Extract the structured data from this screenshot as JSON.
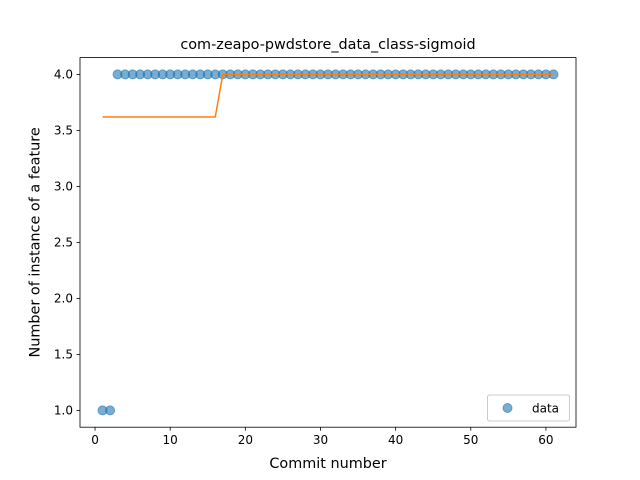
{
  "chart_data": {
    "type": "scatter",
    "title": "com-zeapo-pwdstore_data_class-sigmoid",
    "xlabel": "Commit number",
    "ylabel": "Number of instance of a feature",
    "xlim": [
      -2,
      64
    ],
    "ylim": [
      0.85,
      4.15
    ],
    "xticks": [
      0,
      10,
      20,
      30,
      40,
      50,
      60
    ],
    "yticks": [
      1.0,
      1.5,
      2.0,
      2.5,
      3.0,
      3.5,
      4.0
    ],
    "xtick_labels": [
      "0",
      "10",
      "20",
      "30",
      "40",
      "50",
      "60"
    ],
    "ytick_labels": [
      "1.0",
      "1.5",
      "2.0",
      "2.5",
      "3.0",
      "3.5",
      "4.0"
    ],
    "grid": false,
    "legend_position": "lower-right",
    "series": [
      {
        "name": "data",
        "kind": "scatter",
        "color": "#1f77b4",
        "x": [
          1,
          2,
          3,
          4,
          5,
          6,
          7,
          8,
          9,
          10,
          11,
          12,
          13,
          14,
          15,
          16,
          17,
          18,
          19,
          20,
          21,
          22,
          23,
          24,
          25,
          26,
          27,
          28,
          29,
          30,
          31,
          32,
          33,
          34,
          35,
          36,
          37,
          38,
          39,
          40,
          41,
          42,
          43,
          44,
          45,
          46,
          47,
          48,
          49,
          50,
          51,
          52,
          53,
          54,
          55,
          56,
          57,
          58,
          59,
          60,
          61
        ],
        "y": [
          1,
          1,
          4,
          4,
          4,
          4,
          4,
          4,
          4,
          4,
          4,
          4,
          4,
          4,
          4,
          4,
          4,
          4,
          4,
          4,
          4,
          4,
          4,
          4,
          4,
          4,
          4,
          4,
          4,
          4,
          4,
          4,
          4,
          4,
          4,
          4,
          4,
          4,
          4,
          4,
          4,
          4,
          4,
          4,
          4,
          4,
          4,
          4,
          4,
          4,
          4,
          4,
          4,
          4,
          4,
          4,
          4,
          4,
          4,
          4,
          4
        ]
      },
      {
        "kind": "line",
        "color": "#ff7f0e",
        "x": [
          1,
          2,
          3,
          4,
          5,
          6,
          7,
          8,
          9,
          10,
          11,
          12,
          13,
          14,
          15,
          16,
          17,
          18,
          19,
          20,
          21,
          22,
          23,
          24,
          25,
          26,
          27,
          28,
          29,
          30,
          31,
          32,
          33,
          34,
          35,
          36,
          37,
          38,
          39,
          40,
          41,
          42,
          43,
          44,
          45,
          46,
          47,
          48,
          49,
          50,
          51,
          52,
          53,
          54,
          55,
          56,
          57,
          58,
          59,
          60,
          61
        ],
        "y": [
          3.62,
          3.62,
          3.62,
          3.62,
          3.62,
          3.62,
          3.62,
          3.62,
          3.62,
          3.62,
          3.62,
          3.62,
          3.62,
          3.62,
          3.62,
          3.62,
          4,
          4,
          4,
          4,
          4,
          4,
          4,
          4,
          4,
          4,
          4,
          4,
          4,
          4,
          4,
          4,
          4,
          4,
          4,
          4,
          4,
          4,
          4,
          4,
          4,
          4,
          4,
          4,
          4,
          4,
          4,
          4,
          4,
          4,
          4,
          4,
          4,
          4,
          4,
          4,
          4,
          4,
          4,
          4,
          4
        ]
      }
    ]
  }
}
